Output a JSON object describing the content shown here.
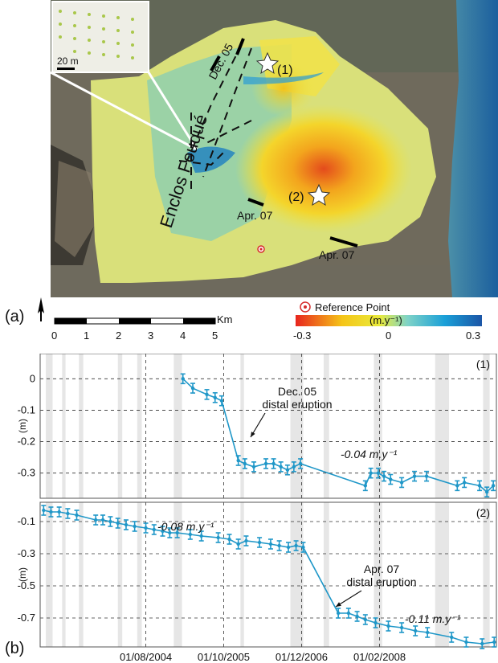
{
  "panel_labels": {
    "a": "(a)",
    "b": "(b)"
  },
  "map": {
    "inset_scale": "20 m",
    "caldera_label": "Enclos Fouqué",
    "eruption_labels": [
      "Dec. 05",
      "Apr. 07",
      "Apr. 07"
    ],
    "point_labels": [
      "(1)",
      "(2)"
    ],
    "scale_bar": {
      "unit": "Km",
      "ticks": [
        "0",
        "1",
        "2",
        "3",
        "4",
        "5"
      ]
    },
    "reference_point": "Reference Point",
    "colorbar": {
      "unit": "(m.y⁻¹)",
      "ticks": [
        "-0.3",
        "0",
        "0.3"
      ],
      "colors": [
        "#e8251e",
        "#f5c518",
        "#e9ea3b",
        "#7fd3c7",
        "#1aa0d8",
        "#1b55a6"
      ]
    },
    "north_label": "N"
  },
  "chart_data": [
    {
      "type": "scatter",
      "title": "(1)",
      "ylabel": "(m)",
      "yticks": [
        "0",
        "-0.1",
        "-0.2",
        "-0.3"
      ],
      "ylim": [
        -0.38,
        0.08
      ],
      "xlim": [
        "2003-01-01",
        "2009-11-01"
      ],
      "xticks": [
        "01/08/2004",
        "01/10/2005",
        "01/12/2006",
        "01/02/2008"
      ],
      "line_color": "#1f97c8",
      "annotations": {
        "eruption": "Dec. 05",
        "eruption_sub": "distal eruption",
        "rate": "-0.04 m.y⁻¹"
      },
      "series": [
        {
          "x": [
            "2005-02-20",
            "2005-04-15",
            "2005-07-01",
            "2005-08-15",
            "2005-09-20",
            "2005-12-20",
            "2006-01-25",
            "2006-03-15",
            "2006-05-20",
            "2006-07-01",
            "2006-08-10",
            "2006-09-15",
            "2006-10-20",
            "2006-11-25",
            "2007-11-15",
            "2007-12-15",
            "2008-01-25",
            "2008-02-25",
            "2008-04-01",
            "2008-06-01",
            "2008-08-10",
            "2008-10-15",
            "2009-04-01",
            "2009-05-10",
            "2009-08-01",
            "2009-09-10",
            "2009-10-15"
          ],
          "y": [
            0.0,
            -0.03,
            -0.05,
            -0.06,
            -0.07,
            -0.26,
            -0.27,
            -0.28,
            -0.27,
            -0.27,
            -0.28,
            -0.29,
            -0.28,
            -0.27,
            -0.34,
            -0.3,
            -0.3,
            -0.31,
            -0.32,
            -0.33,
            -0.31,
            -0.31,
            -0.34,
            -0.33,
            -0.34,
            -0.36,
            -0.34
          ]
        }
      ]
    },
    {
      "type": "scatter",
      "title": "(2)",
      "ylabel": "(m)",
      "yticks": [
        "-0.1",
        "-0.3",
        "-0.5",
        "-0.7"
      ],
      "ylim": [
        -0.88,
        0.02
      ],
      "xlim": [
        "2003-01-01",
        "2009-11-01"
      ],
      "xticks": [
        "01/08/2004",
        "01/10/2005",
        "01/12/2006",
        "01/02/2008"
      ],
      "line_color": "#1f97c8",
      "annotations": {
        "eruption": "Apr. 07",
        "eruption_sub": "distal eruption",
        "rate1": "-0.08 m.y⁻¹",
        "rate2": "-0.11 m.y⁻¹"
      },
      "series": [
        {
          "x": [
            "2003-01-20",
            "2003-03-01",
            "2003-04-15",
            "2003-06-01",
            "2003-07-20",
            "2003-11-01",
            "2003-12-10",
            "2004-01-20",
            "2004-03-01",
            "2004-04-15",
            "2004-06-01",
            "2004-08-01",
            "2004-09-15",
            "2004-11-01",
            "2004-12-10",
            "2005-01-20",
            "2005-04-01",
            "2005-06-01",
            "2005-09-01",
            "2005-11-01",
            "2005-12-20",
            "2006-02-01",
            "2006-04-15",
            "2006-06-15",
            "2006-08-01",
            "2006-09-20",
            "2006-11-01",
            "2006-12-10",
            "2007-06-20",
            "2007-08-15",
            "2007-10-01",
            "2007-11-15",
            "2008-01-10",
            "2008-03-20",
            "2008-06-01",
            "2008-08-15",
            "2008-10-20",
            "2009-03-01",
            "2009-05-20",
            "2009-08-15",
            "2009-10-20"
          ],
          "y": [
            -0.03,
            -0.04,
            -0.04,
            -0.05,
            -0.06,
            -0.09,
            -0.09,
            -0.1,
            -0.11,
            -0.12,
            -0.13,
            -0.14,
            -0.15,
            -0.16,
            -0.17,
            -0.17,
            -0.18,
            -0.19,
            -0.2,
            -0.21,
            -0.24,
            -0.22,
            -0.23,
            -0.24,
            -0.25,
            -0.26,
            -0.25,
            -0.26,
            -0.67,
            -0.67,
            -0.69,
            -0.71,
            -0.73,
            -0.75,
            -0.76,
            -0.78,
            -0.79,
            -0.82,
            -0.85,
            -0.86,
            -0.85
          ]
        }
      ]
    }
  ]
}
